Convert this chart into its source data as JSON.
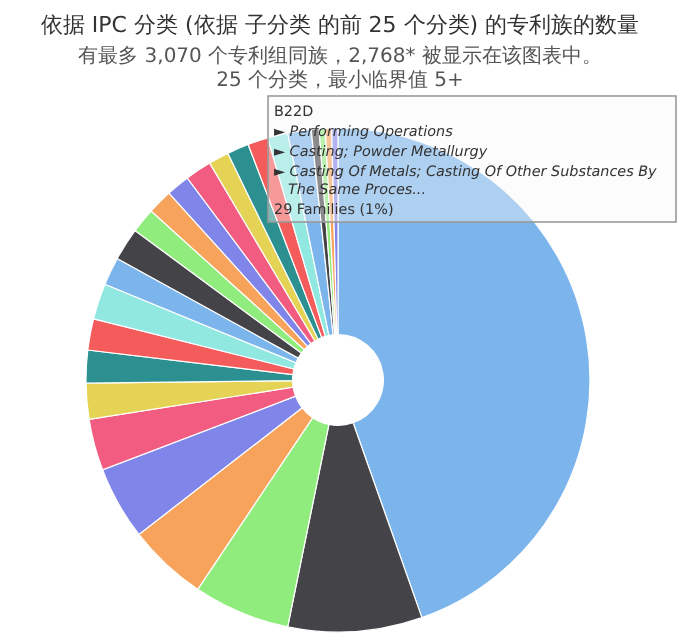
{
  "chart_data": {
    "type": "donut",
    "title": "依据 IPC 分类 (依据 子分类 的前 25 个分类) 的专利族的数量",
    "subtitle": "有最多 3,070 个专利组同族，2,768* 被显示在该图表中。\n25 个分类，最小临界值 5+",
    "categories": [
      null,
      null,
      null,
      null,
      null,
      null,
      null,
      null,
      null,
      null,
      null,
      null,
      null,
      null,
      null,
      null,
      null,
      null,
      null,
      null,
      null,
      null,
      null,
      null,
      null
    ],
    "values": [
      44.6,
      8.6,
      6.2,
      5.1,
      4.7,
      3.3,
      2.3,
      2.1,
      2.0,
      2.3,
      1.8,
      2.1,
      1.6,
      1.6,
      1.5,
      1.7,
      1.3,
      1.4,
      1.3,
      1.3,
      1.5,
      0.5,
      0.4,
      0.4,
      0.4
    ],
    "colors": [
      "#7cb5ec",
      "#434348",
      "#90ed7d",
      "#f7a35c",
      "#8085e9",
      "#f15c80",
      "#e4d354",
      "#2b908f",
      "#f45b5b",
      "#91e8e1",
      "#7cb5ec",
      "#434348",
      "#90ed7d",
      "#f7a35c",
      "#8085e9",
      "#f15c80",
      "#e4d354",
      "#2b908f",
      "#f45b5b",
      "#91e8e1",
      "#7cb5ec",
      "#434348",
      "#90ed7d",
      "#f7a35c",
      "#8085e9"
    ],
    "annotations": [
      "B22D",
      "► Performing Operations",
      "► Casting; Powder Metallurgy",
      "► Casting Of Metals; Casting Of Other Substances By The Same Proces...",
      "29 Families (1%)"
    ]
  }
}
